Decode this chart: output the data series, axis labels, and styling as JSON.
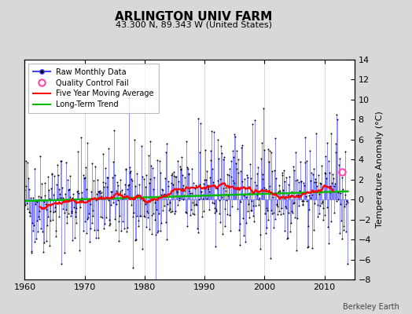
{
  "title": "ARLINGTON UNIV FARM",
  "subtitle": "43.300 N, 89.343 W (United States)",
  "ylabel": "Temperature Anomaly (°C)",
  "credit": "Berkeley Earth",
  "xlim": [
    1960,
    2015
  ],
  "ylim": [
    -8,
    14
  ],
  "yticks": [
    -8,
    -6,
    -4,
    -2,
    0,
    2,
    4,
    6,
    8,
    10,
    12,
    14
  ],
  "xticks": [
    1960,
    1970,
    1980,
    1990,
    2000,
    2010
  ],
  "bg_color": "#d8d8d8",
  "plot_bg_color": "#ffffff",
  "raw_line_color": "#4444ff",
  "dot_color": "#000000",
  "ma_color": "#ff0000",
  "trend_color": "#00bb00",
  "qc_color": "#ff44aa",
  "seed": 42,
  "n_months": 648,
  "start_year": 1960
}
